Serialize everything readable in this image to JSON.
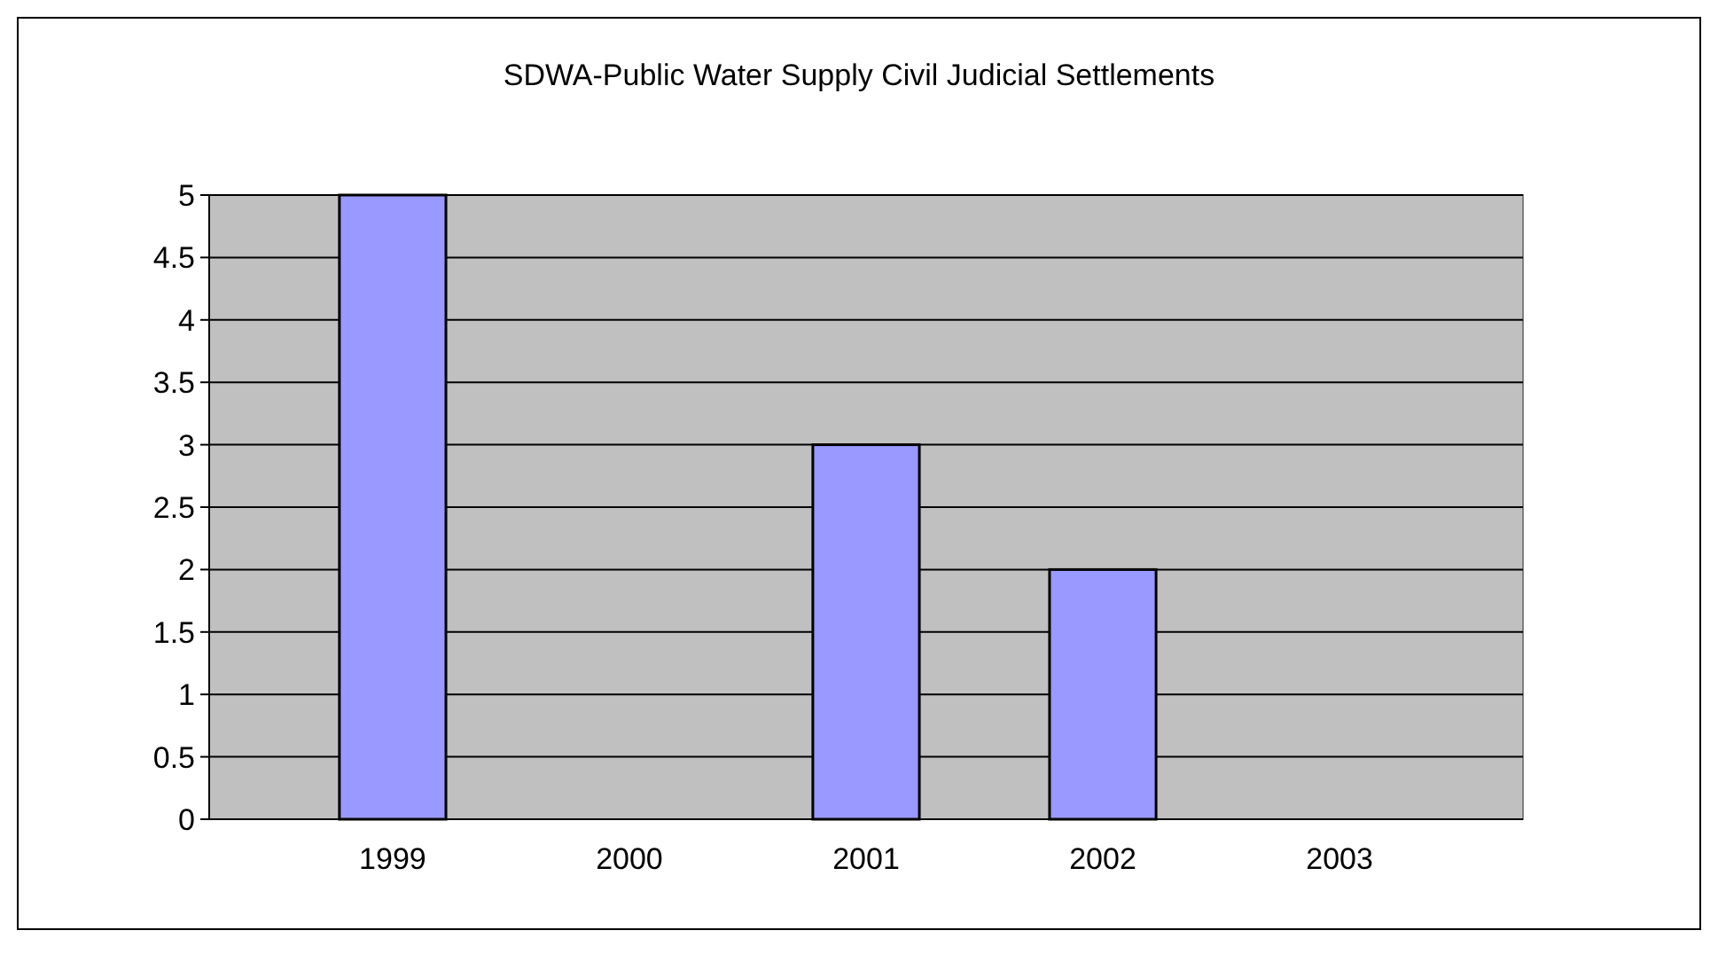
{
  "chart_data": {
    "type": "bar",
    "title": "SDWA-Public Water Supply Civil Judicial Settlements",
    "categories": [
      "1999",
      "2000",
      "2001",
      "2002",
      "2003"
    ],
    "values": [
      5,
      0,
      3,
      2,
      0
    ],
    "color": "#9999ff",
    "ylim": [
      0,
      5
    ],
    "yticks": [
      0,
      0.5,
      1,
      1.5,
      2,
      2.5,
      3,
      3.5,
      4,
      4.5,
      5
    ],
    "grid": "y"
  }
}
